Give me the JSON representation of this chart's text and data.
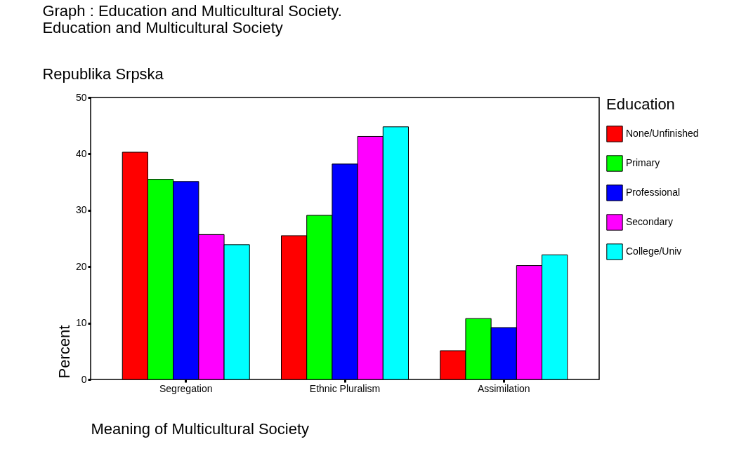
{
  "chart_data": {
    "type": "bar",
    "title": "Education and Multicultural Society",
    "subtitle": "Republika Srpska",
    "xlabel": "Meaning of Multicultural Society",
    "ylabel": "Percent",
    "legend_title": "Education",
    "annotations": [
      "Graph : Education and Multicultural Society."
    ],
    "categories": [
      "Segregation",
      "Ethnic Pluralism",
      "Assimilation"
    ],
    "series": [
      {
        "name": "None/Unfinished",
        "color": "#ff0000",
        "values": [
          40.3,
          25.5,
          5.1
        ]
      },
      {
        "name": "Primary",
        "color": "#00ff00",
        "values": [
          35.5,
          29.1,
          10.8
        ]
      },
      {
        "name": "Professional",
        "color": "#0000ff",
        "values": [
          35.1,
          38.2,
          9.2
        ]
      },
      {
        "name": "Secondary",
        "color": "#ff00ff",
        "values": [
          25.7,
          43.1,
          20.2
        ]
      },
      {
        "name": "College/Univ",
        "color": "#00ffff",
        "values": [
          23.9,
          44.8,
          22.1
        ]
      }
    ],
    "ylim": [
      0,
      50
    ],
    "yticks": [
      0,
      10,
      20,
      30,
      40,
      50
    ],
    "grid": false,
    "legend": "right"
  }
}
